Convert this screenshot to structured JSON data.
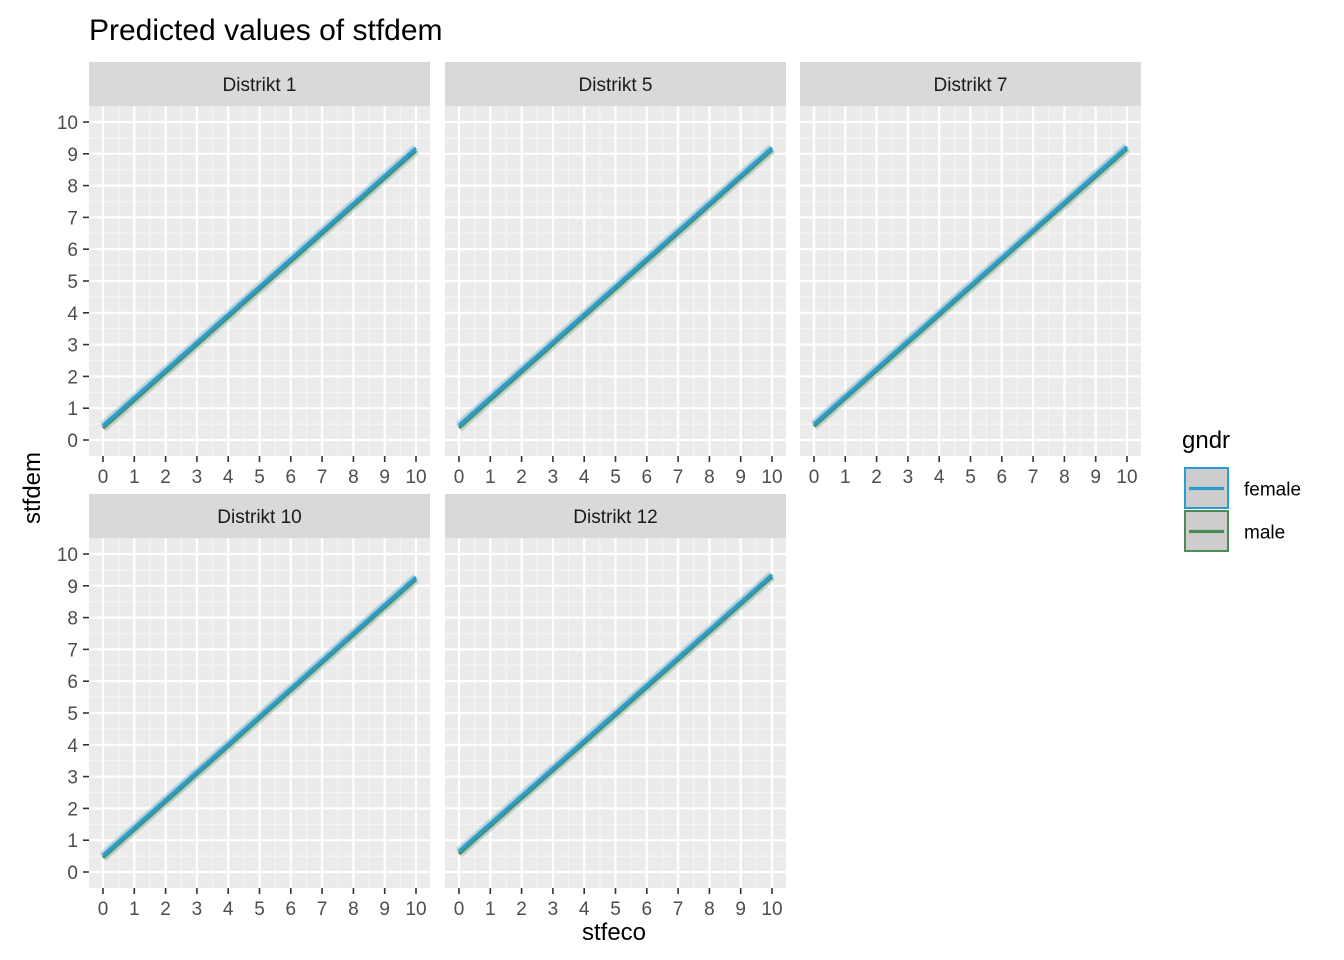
{
  "chart_data": {
    "type": "line",
    "title": "Predicted values of stfdem",
    "xlabel": "stfeco",
    "ylabel": "stfdem",
    "xlim": [
      0,
      10
    ],
    "ylim": [
      0,
      10
    ],
    "x_ticks": [
      "0",
      "1",
      "2",
      "3",
      "4",
      "5",
      "6",
      "7",
      "8",
      "9",
      "10"
    ],
    "y_ticks": [
      "0",
      "1",
      "2",
      "3",
      "4",
      "5",
      "6",
      "7",
      "8",
      "9",
      "10"
    ],
    "grid": true,
    "legend": {
      "title": "gndr",
      "position": "right",
      "entries": [
        {
          "name": "female",
          "color": "#2b9ccf"
        },
        {
          "name": "male",
          "color": "#4e8a55"
        }
      ]
    },
    "panels": [
      {
        "label": "Distrikt 1",
        "series": [
          {
            "name": "female",
            "x": [
              0,
              10
            ],
            "y": [
              0.45,
              9.18
            ]
          },
          {
            "name": "male",
            "x": [
              0,
              10
            ],
            "y": [
              0.37,
              9.1
            ]
          }
        ]
      },
      {
        "label": "Distrikt 5",
        "series": [
          {
            "name": "female",
            "x": [
              0,
              10
            ],
            "y": [
              0.46,
              9.19
            ]
          },
          {
            "name": "male",
            "x": [
              0,
              10
            ],
            "y": [
              0.38,
              9.12
            ]
          }
        ]
      },
      {
        "label": "Distrikt 7",
        "series": [
          {
            "name": "female",
            "x": [
              0,
              10
            ],
            "y": [
              0.5,
              9.22
            ]
          },
          {
            "name": "male",
            "x": [
              0,
              10
            ],
            "y": [
              0.43,
              9.15
            ]
          }
        ]
      },
      {
        "label": "Distrikt 10",
        "series": [
          {
            "name": "female",
            "x": [
              0,
              10
            ],
            "y": [
              0.52,
              9.27
            ]
          },
          {
            "name": "male",
            "x": [
              0,
              10
            ],
            "y": [
              0.45,
              9.2
            ]
          }
        ]
      },
      {
        "label": "Distrikt 12",
        "series": [
          {
            "name": "female",
            "x": [
              0,
              10
            ],
            "y": [
              0.65,
              9.35
            ]
          },
          {
            "name": "male",
            "x": [
              0,
              10
            ],
            "y": [
              0.57,
              9.28
            ]
          }
        ]
      }
    ]
  }
}
